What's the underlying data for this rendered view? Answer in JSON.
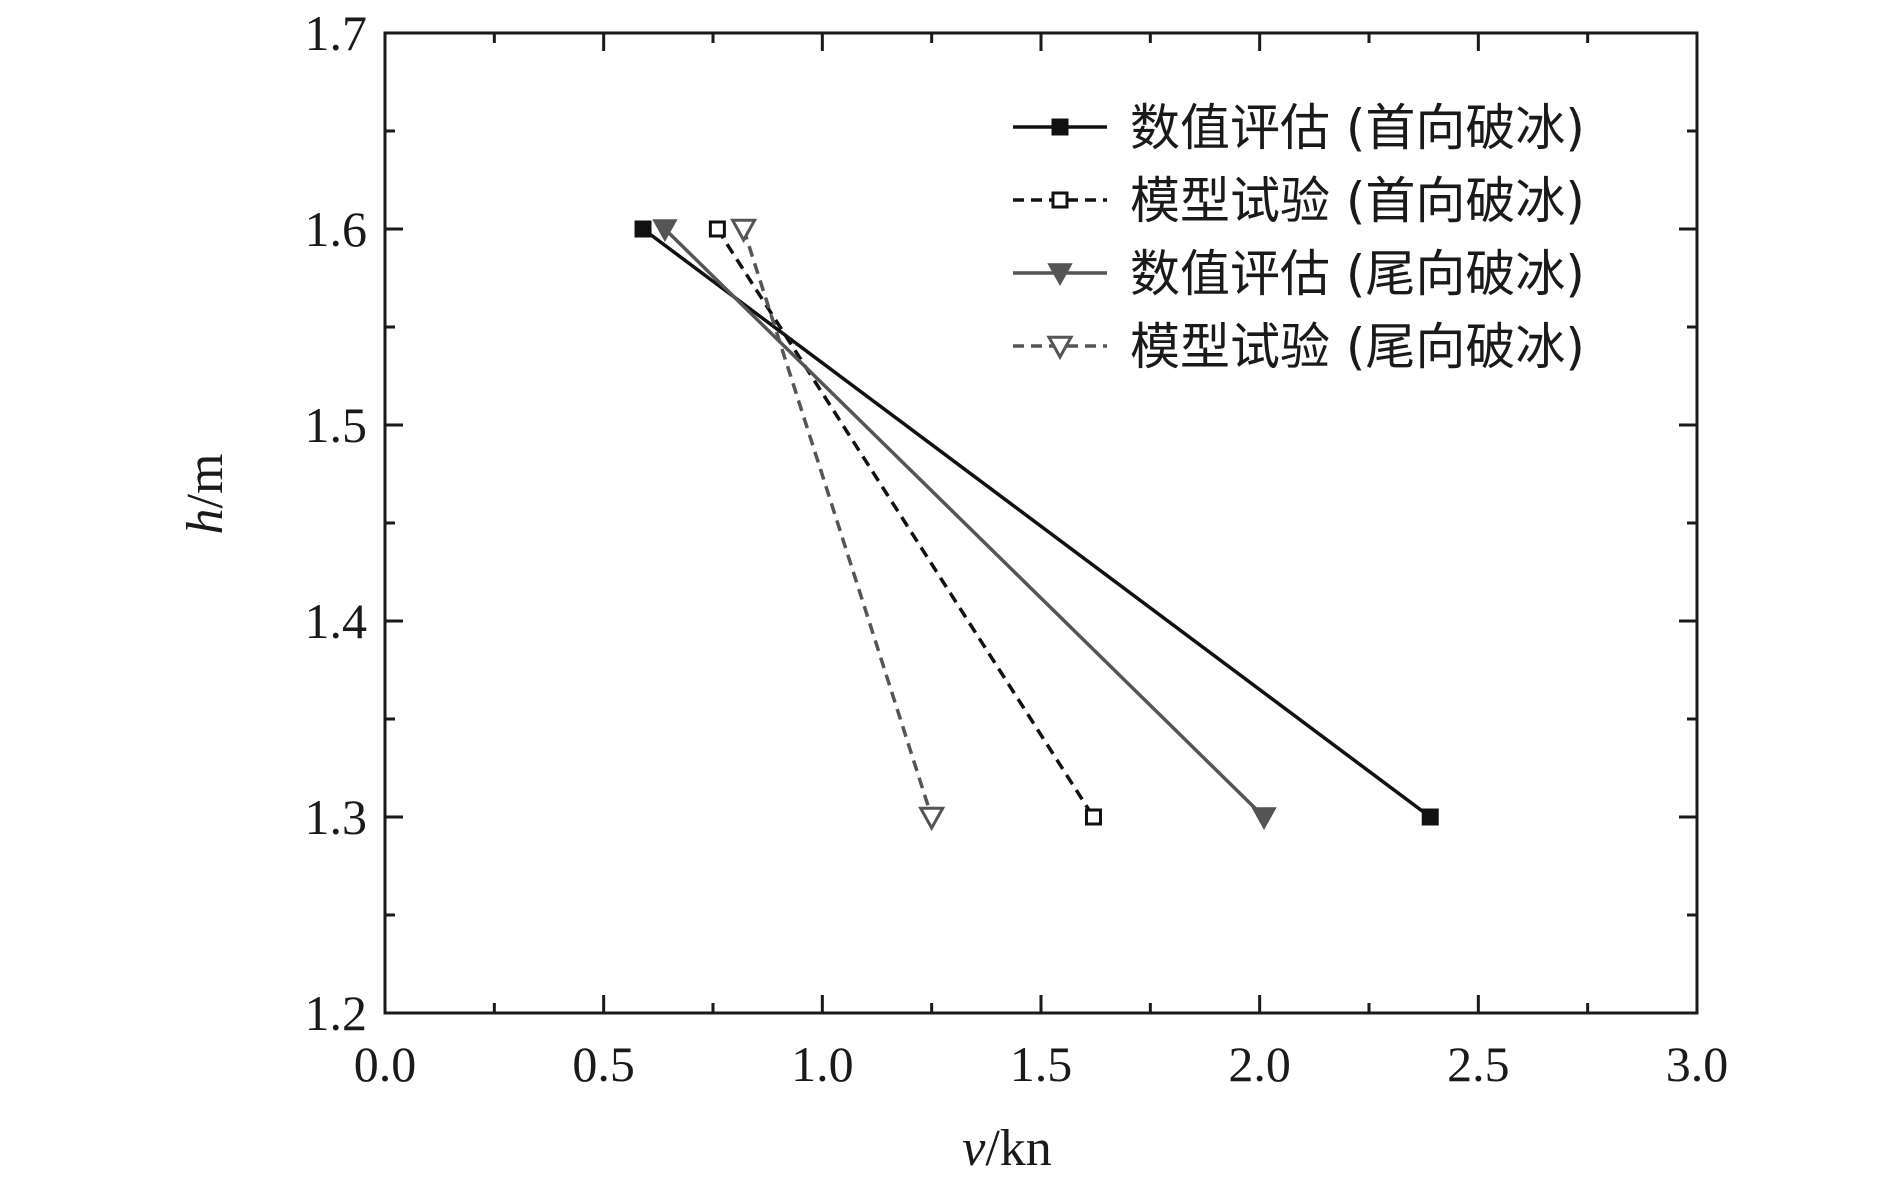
{
  "chart_data": {
    "type": "line",
    "xlabel_var": "v",
    "xlabel_unit": "/kn",
    "ylabel_var": "h",
    "ylabel_unit": "/m",
    "xlim": [
      0,
      3.0
    ],
    "ylim": [
      1.2,
      1.7
    ],
    "xticks": [
      "0.0",
      "0.5",
      "1.0",
      "1.5",
      "2.0",
      "2.5",
      "3.0"
    ],
    "yticks": [
      "1.2",
      "1.3",
      "1.4",
      "1.5",
      "1.6",
      "1.7"
    ],
    "legend_position": "top-right",
    "series": [
      {
        "name": "数值评估 (首向破冰)",
        "color": "#111111",
        "dashed": false,
        "marker": "square-filled",
        "points": [
          [
            0.59,
            1.6
          ],
          [
            2.39,
            1.3
          ]
        ]
      },
      {
        "name": "模型试验 (首向破冰)",
        "color": "#111111",
        "dashed": true,
        "marker": "square-open",
        "points": [
          [
            0.76,
            1.6
          ],
          [
            1.62,
            1.3
          ]
        ]
      },
      {
        "name": "数值评估 (尾向破冰)",
        "color": "#555555",
        "dashed": false,
        "marker": "triangle-down-filled",
        "points": [
          [
            0.64,
            1.6
          ],
          [
            2.01,
            1.3
          ]
        ]
      },
      {
        "name": "模型试验 (尾向破冰)",
        "color": "#555555",
        "dashed": true,
        "marker": "triangle-down-open",
        "points": [
          [
            0.82,
            1.6
          ],
          [
            1.25,
            1.3
          ]
        ]
      }
    ]
  }
}
